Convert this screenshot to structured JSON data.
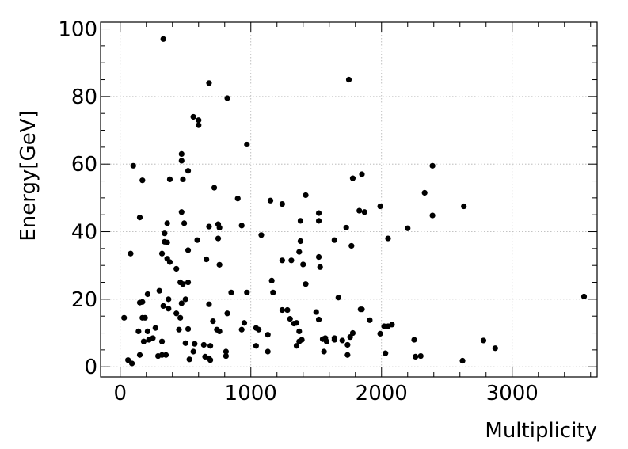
{
  "chart_data": {
    "type": "scatter",
    "title": "",
    "xlabel": "Multiplicity",
    "ylabel": "Energy[GeV]",
    "xlim": [
      -150,
      3650
    ],
    "ylim": [
      -3,
      102
    ],
    "x_major_ticks": [
      0,
      1000,
      2000,
      3000
    ],
    "y_major_ticks": [
      0,
      20,
      40,
      60,
      80,
      100
    ],
    "x_tick_labels": [
      "0",
      "1000",
      "2000",
      "3000"
    ],
    "y_tick_labels": [
      "0",
      "20",
      "40",
      "60",
      "80",
      "100"
    ],
    "grid": true,
    "legend": null,
    "marker_color": "#000000",
    "points": [
      [
        330,
        97
      ],
      [
        1750,
        85
      ],
      [
        680,
        84
      ],
      [
        820,
        79.5
      ],
      [
        560,
        74
      ],
      [
        600,
        73
      ],
      [
        600,
        71.5
      ],
      [
        970,
        65.8
      ],
      [
        470,
        63
      ],
      [
        470,
        61
      ],
      [
        100,
        59.5
      ],
      [
        520,
        58
      ],
      [
        1850,
        57
      ],
      [
        2390,
        59.5
      ],
      [
        1780,
        55.8
      ],
      [
        170,
        55.2
      ],
      [
        380,
        55.5
      ],
      [
        480,
        55.5
      ],
      [
        1420,
        50.8
      ],
      [
        2330,
        51.5
      ],
      [
        720,
        53
      ],
      [
        900,
        49.8
      ],
      [
        1150,
        49.2
      ],
      [
        1240,
        48.2
      ],
      [
        1990,
        47.5
      ],
      [
        2630,
        47.5
      ],
      [
        1830,
        46.2
      ],
      [
        1870,
        45.8
      ],
      [
        470,
        45.8
      ],
      [
        1520,
        45.5
      ],
      [
        2390,
        44.8
      ],
      [
        150,
        44.2
      ],
      [
        1520,
        43.2
      ],
      [
        1380,
        43.2
      ],
      [
        360,
        42.5
      ],
      [
        490,
        42.5
      ],
      [
        750,
        42.2
      ],
      [
        930,
        41.8
      ],
      [
        680,
        41.5
      ],
      [
        760,
        41.2
      ],
      [
        2200,
        41
      ],
      [
        1730,
        41.2
      ],
      [
        1080,
        39
      ],
      [
        340,
        39.5
      ],
      [
        1380,
        37.2
      ],
      [
        2050,
        38
      ],
      [
        750,
        38
      ],
      [
        340,
        37
      ],
      [
        360,
        36.8
      ],
      [
        590,
        37.5
      ],
      [
        1640,
        37.5
      ],
      [
        1770,
        35.8
      ],
      [
        520,
        34.5
      ],
      [
        1370,
        34
      ],
      [
        80,
        33.5
      ],
      [
        320,
        33.5
      ],
      [
        1520,
        32.5
      ],
      [
        360,
        32
      ],
      [
        380,
        31
      ],
      [
        660,
        31.8
      ],
      [
        1240,
        31.5
      ],
      [
        1310,
        31.5
      ],
      [
        760,
        30.2
      ],
      [
        1400,
        30.3
      ],
      [
        1530,
        29.5
      ],
      [
        430,
        29
      ],
      [
        460,
        25
      ],
      [
        480,
        24.5
      ],
      [
        1160,
        25.5
      ],
      [
        1420,
        24.5
      ],
      [
        520,
        25
      ],
      [
        970,
        22
      ],
      [
        850,
        22
      ],
      [
        300,
        22.5
      ],
      [
        1170,
        22
      ],
      [
        210,
        21.5
      ],
      [
        3550,
        20.8
      ],
      [
        1670,
        20.5
      ],
      [
        370,
        20
      ],
      [
        150,
        19
      ],
      [
        170,
        19.2
      ],
      [
        470,
        18.8
      ],
      [
        500,
        20
      ],
      [
        680,
        18.5
      ],
      [
        1240,
        16.8
      ],
      [
        1280,
        16.8
      ],
      [
        330,
        18
      ],
      [
        370,
        17.2
      ],
      [
        1500,
        16.2
      ],
      [
        820,
        15.8
      ],
      [
        1840,
        17
      ],
      [
        430,
        15.8
      ],
      [
        170,
        14.5
      ],
      [
        190,
        14.5
      ],
      [
        1850,
        17
      ],
      [
        1520,
        14
      ],
      [
        1300,
        14.2
      ],
      [
        30,
        14.5
      ],
      [
        460,
        14.5
      ],
      [
        1910,
        13.8
      ],
      [
        950,
        13
      ],
      [
        1350,
        13
      ],
      [
        710,
        13.5
      ],
      [
        1330,
        12.8
      ],
      [
        2050,
        12
      ],
      [
        2080,
        12.5
      ],
      [
        1040,
        11.5
      ],
      [
        450,
        11
      ],
      [
        520,
        11.2
      ],
      [
        740,
        11
      ],
      [
        760,
        10.5
      ],
      [
        930,
        11
      ],
      [
        1060,
        11
      ],
      [
        1370,
        10.5
      ],
      [
        2020,
        12
      ],
      [
        1780,
        10
      ],
      [
        1990,
        9.8
      ],
      [
        140,
        10.5
      ],
      [
        210,
        10.5
      ],
      [
        270,
        11.5
      ],
      [
        220,
        8
      ],
      [
        250,
        8.5
      ],
      [
        180,
        7.5
      ],
      [
        1130,
        9.5
      ],
      [
        1760,
        8.8
      ],
      [
        1570,
        8.5
      ],
      [
        1640,
        8.5
      ],
      [
        1550,
        8.2
      ],
      [
        1700,
        7.8
      ],
      [
        1640,
        8
      ],
      [
        1390,
        8
      ],
      [
        1370,
        7.5
      ],
      [
        1580,
        7.5
      ],
      [
        1740,
        6.5
      ],
      [
        2250,
        8
      ],
      [
        2780,
        7.8
      ],
      [
        320,
        7.5
      ],
      [
        500,
        7
      ],
      [
        570,
        6.8
      ],
      [
        640,
        6.5
      ],
      [
        690,
        6.2
      ],
      [
        1040,
        6.2
      ],
      [
        1350,
        6.2
      ],
      [
        2870,
        5.5
      ],
      [
        560,
        4.5
      ],
      [
        810,
        4.5
      ],
      [
        1130,
        4.5
      ],
      [
        1560,
        4.5
      ],
      [
        2030,
        4
      ],
      [
        150,
        3.5
      ],
      [
        290,
        3.2
      ],
      [
        320,
        3.5
      ],
      [
        350,
        3.5
      ],
      [
        650,
        3
      ],
      [
        680,
        2.5
      ],
      [
        690,
        2
      ],
      [
        810,
        3.2
      ],
      [
        1740,
        3.5
      ],
      [
        2300,
        3.2
      ],
      [
        2260,
        3
      ],
      [
        60,
        2
      ],
      [
        90,
        1
      ],
      [
        530,
        2.2
      ],
      [
        2620,
        1.8
      ]
    ]
  }
}
